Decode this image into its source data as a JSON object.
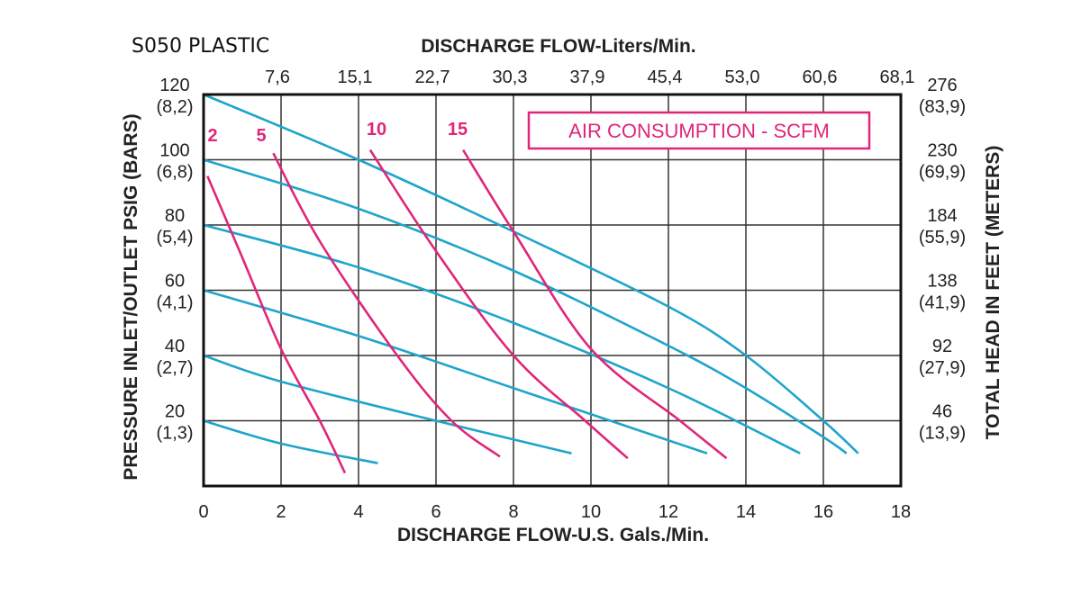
{
  "chart_data": {
    "type": "line",
    "title": "S050 PLASTIC",
    "xlabel": "DISCHARGE FLOW-U.S. Gals./Min.",
    "x2label": "DISCHARGE FLOW-Liters/Min.",
    "ylabel": "PRESSURE INLET/OUTLET PSIG (BARS)",
    "y2label": "TOTAL HEAD IN FEET (METERS)",
    "xlim": [
      0,
      18
    ],
    "ylim": [
      0,
      120
    ],
    "grid": true,
    "x_ticks": [
      "0",
      "2",
      "4",
      "6",
      "8",
      "10",
      "12",
      "14",
      "16",
      "18"
    ],
    "x2_ticks": [
      "7,6",
      "15,1",
      "22,7",
      "30,3",
      "37,9",
      "45,4",
      "53,0",
      "60,6",
      "68,1"
    ],
    "y_ticks": [
      {
        "value": 120,
        "psi": "120",
        "bar": "(8,2)",
        "feet": "276",
        "meters": "(83,9)"
      },
      {
        "value": 100,
        "psi": "100",
        "bar": "(6,8)",
        "feet": "230",
        "meters": "(69,9)"
      },
      {
        "value": 80,
        "psi": "80",
        "bar": "(5,4)",
        "feet": "184",
        "meters": "(55,9)"
      },
      {
        "value": 60,
        "psi": "60",
        "bar": "(4,1)",
        "feet": "138",
        "meters": "(41,9)"
      },
      {
        "value": 40,
        "psi": "40",
        "bar": "(2,7)",
        "feet": "92",
        "meters": "(27,9)"
      },
      {
        "value": 20,
        "psi": "20",
        "bar": "(1,3)",
        "feet": "46",
        "meters": "(13,9)"
      }
    ],
    "legend_box": "AIR CONSUMPTION - SCFM",
    "colors": {
      "pressure": "#1ea5cc",
      "air": "#e0267a"
    },
    "pressure_series": [
      {
        "inlet_psi": 120,
        "points": [
          [
            0,
            120
          ],
          [
            4,
            100
          ],
          [
            8,
            78
          ],
          [
            12,
            55
          ],
          [
            14,
            40
          ],
          [
            16,
            20
          ],
          [
            16.9,
            10
          ]
        ]
      },
      {
        "inlet_psi": 100,
        "points": [
          [
            0,
            100
          ],
          [
            4,
            85
          ],
          [
            8,
            66
          ],
          [
            12,
            43
          ],
          [
            14,
            30
          ],
          [
            16,
            15
          ],
          [
            16.6,
            10
          ]
        ]
      },
      {
        "inlet_psi": 80,
        "points": [
          [
            0,
            80
          ],
          [
            4,
            67
          ],
          [
            8,
            50
          ],
          [
            12,
            30
          ],
          [
            15.4,
            10
          ]
        ]
      },
      {
        "inlet_psi": 60,
        "points": [
          [
            0,
            60
          ],
          [
            4,
            46
          ],
          [
            8,
            30
          ],
          [
            11,
            18
          ],
          [
            13,
            10
          ]
        ]
      },
      {
        "inlet_psi": 40,
        "points": [
          [
            0,
            40
          ],
          [
            2,
            32
          ],
          [
            6,
            20
          ],
          [
            9.5,
            10
          ]
        ]
      },
      {
        "inlet_psi": 20,
        "points": [
          [
            0,
            20
          ],
          [
            2,
            13
          ],
          [
            4.5,
            7
          ]
        ]
      }
    ],
    "air_series": [
      {
        "name": "2",
        "points": [
          [
            0.1,
            95
          ],
          [
            1,
            70
          ],
          [
            2,
            42
          ],
          [
            3,
            20
          ],
          [
            3.65,
            4
          ]
        ]
      },
      {
        "name": "5",
        "points": [
          [
            1.8,
            102
          ],
          [
            3,
            75
          ],
          [
            5,
            40
          ],
          [
            6.4,
            20
          ],
          [
            7.65,
            9
          ]
        ]
      },
      {
        "name": "10",
        "points": [
          [
            4.3,
            103
          ],
          [
            6,
            72
          ],
          [
            8,
            40
          ],
          [
            9.85,
            20
          ],
          [
            10.95,
            8.5
          ]
        ]
      },
      {
        "name": "15",
        "points": [
          [
            6.7,
            103
          ],
          [
            8,
            78
          ],
          [
            10,
            42
          ],
          [
            12.3,
            20
          ],
          [
            13.5,
            8.5
          ]
        ]
      }
    ]
  }
}
